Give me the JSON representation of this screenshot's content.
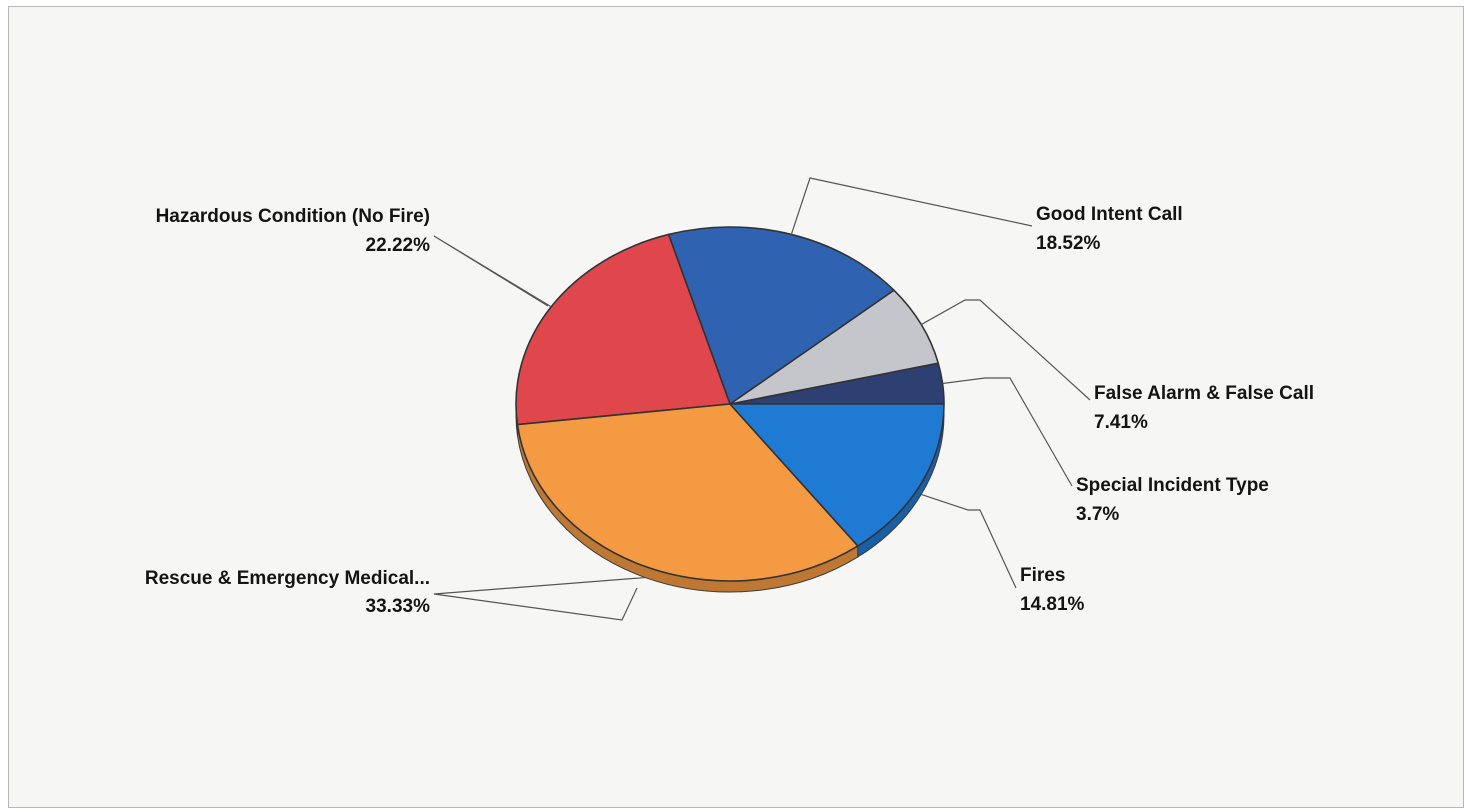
{
  "chart_data": {
    "type": "pie",
    "style": "3d-tilted",
    "start_angle_deg": 0,
    "direction": "counterclockwise",
    "slices": [
      {
        "name": "Special Incident Type",
        "percent_label": "3.7%",
        "value": 3.7,
        "color": "#2e3f72"
      },
      {
        "name": "False Alarm & False Call",
        "percent_label": "7.41%",
        "value": 7.41,
        "color": "#c5c5cc"
      },
      {
        "name": "Good Intent Call",
        "percent_label": "18.52%",
        "value": 18.52,
        "color": "#2f62b0"
      },
      {
        "name": "Hazardous Condition (No Fire)",
        "percent_label": "22.22%",
        "value": 22.22,
        "color": "#e0474c"
      },
      {
        "name": "Rescue & Emergency Medical...",
        "percent_label": "33.33%",
        "value": 33.33,
        "color": "#f39a42"
      },
      {
        "name": "Fires",
        "percent_label": "14.81%",
        "value": 14.81,
        "color": "#1f7ad4"
      }
    ]
  }
}
